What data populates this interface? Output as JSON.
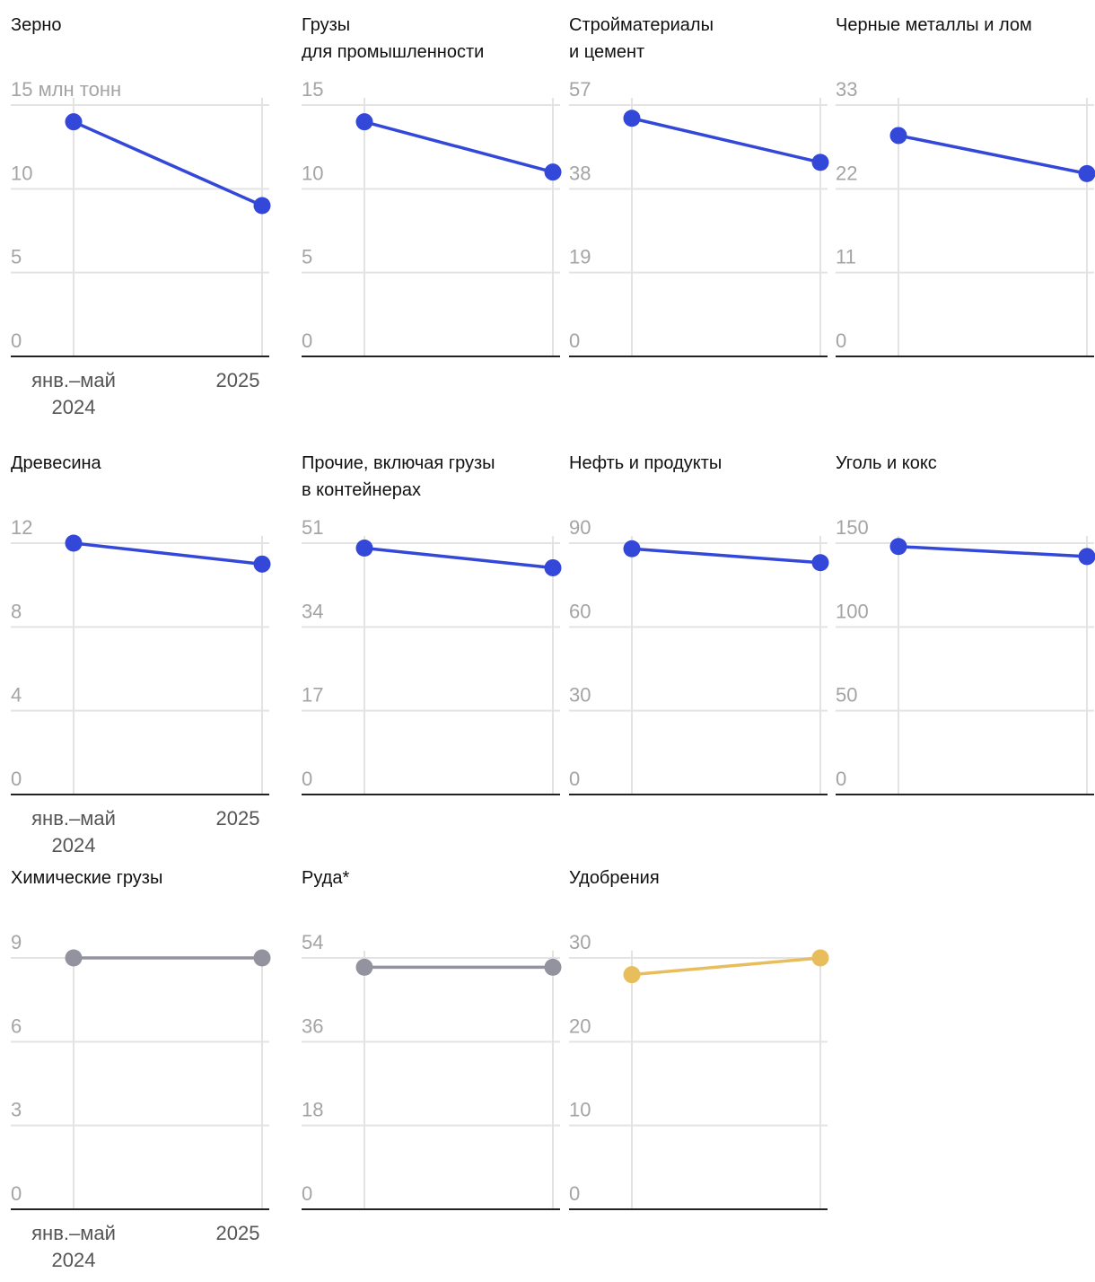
{
  "chart_data": [
    {
      "type": "line",
      "title": "Зерно",
      "categories": [
        "янв.–май 2024",
        "2025"
      ],
      "y_unit": "млн тонн",
      "ylim": [
        0,
        15
      ],
      "yticks": [
        "0",
        "5",
        "10",
        "15 млн тонн"
      ],
      "values": [
        14,
        9
      ],
      "color": "#3347d8",
      "show_xlabels": true
    },
    {
      "type": "line",
      "title": "Грузы\nдля промышленности",
      "categories": [
        "янв.–май 2024",
        "2025"
      ],
      "ylim": [
        0,
        15
      ],
      "yticks": [
        "0",
        "5",
        "10",
        "15"
      ],
      "values": [
        14,
        11
      ],
      "color": "#3347d8",
      "show_xlabels": false
    },
    {
      "type": "line",
      "title": "Стройматериалы\nи цемент",
      "categories": [
        "янв.–май 2024",
        "2025"
      ],
      "ylim": [
        0,
        57
      ],
      "yticks": [
        "0",
        "19",
        "38",
        "57"
      ],
      "values": [
        54,
        44
      ],
      "color": "#3347d8",
      "show_xlabels": false
    },
    {
      "type": "line",
      "title": "Черные металлы и лом",
      "categories": [
        "янв.–май 2024",
        "2025"
      ],
      "ylim": [
        0,
        33
      ],
      "yticks": [
        "0",
        "11",
        "22",
        "33"
      ],
      "values": [
        29,
        24
      ],
      "color": "#3347d8",
      "show_xlabels": false
    },
    {
      "type": "line",
      "title": "Древесина",
      "categories": [
        "янв.–май 2024",
        "2025"
      ],
      "ylim": [
        0,
        12
      ],
      "yticks": [
        "0",
        "4",
        "8",
        "12"
      ],
      "values": [
        12,
        11
      ],
      "color": "#3347d8",
      "show_xlabels": true
    },
    {
      "type": "line",
      "title": "Прочие, включая грузы\nв контейнерах",
      "categories": [
        "янв.–май 2024",
        "2025"
      ],
      "ylim": [
        0,
        51
      ],
      "yticks": [
        "0",
        "17",
        "34",
        "51"
      ],
      "values": [
        50,
        46
      ],
      "color": "#3347d8",
      "show_xlabels": false
    },
    {
      "type": "line",
      "title": "Нефть и продукты",
      "categories": [
        "янв.–май 2024",
        "2025"
      ],
      "ylim": [
        0,
        90
      ],
      "yticks": [
        "0",
        "30",
        "60",
        "90"
      ],
      "values": [
        88,
        83
      ],
      "color": "#3347d8",
      "show_xlabels": false
    },
    {
      "type": "line",
      "title": "Уголь и кокс",
      "categories": [
        "янв.–май 2024",
        "2025"
      ],
      "ylim": [
        0,
        150
      ],
      "yticks": [
        "0",
        "50",
        "100",
        "150"
      ],
      "values": [
        148,
        142
      ],
      "color": "#3347d8",
      "show_xlabels": false
    },
    {
      "type": "line",
      "title": "Химические грузы",
      "categories": [
        "янв.–май 2024",
        "2025"
      ],
      "ylim": [
        0,
        9
      ],
      "yticks": [
        "0",
        "3",
        "6",
        "9"
      ],
      "values": [
        9,
        9
      ],
      "color": "#93939f",
      "show_xlabels": true
    },
    {
      "type": "line",
      "title": "Руда*",
      "categories": [
        "янв.–май 2024",
        "2025"
      ],
      "ylim": [
        0,
        54
      ],
      "yticks": [
        "0",
        "18",
        "36",
        "54"
      ],
      "values": [
        52,
        52
      ],
      "color": "#93939f",
      "show_xlabels": false
    },
    {
      "type": "line",
      "title": "Удобрения",
      "categories": [
        "янв.–май 2024",
        "2025"
      ],
      "ylim": [
        0,
        30
      ],
      "yticks": [
        "0",
        "10",
        "20",
        "30"
      ],
      "values": [
        28,
        30
      ],
      "color": "#e8bd5c",
      "show_xlabels": false
    }
  ],
  "xlabels": {
    "first_line1": "янв.–май",
    "first_line2": "2024",
    "second": "2025"
  }
}
